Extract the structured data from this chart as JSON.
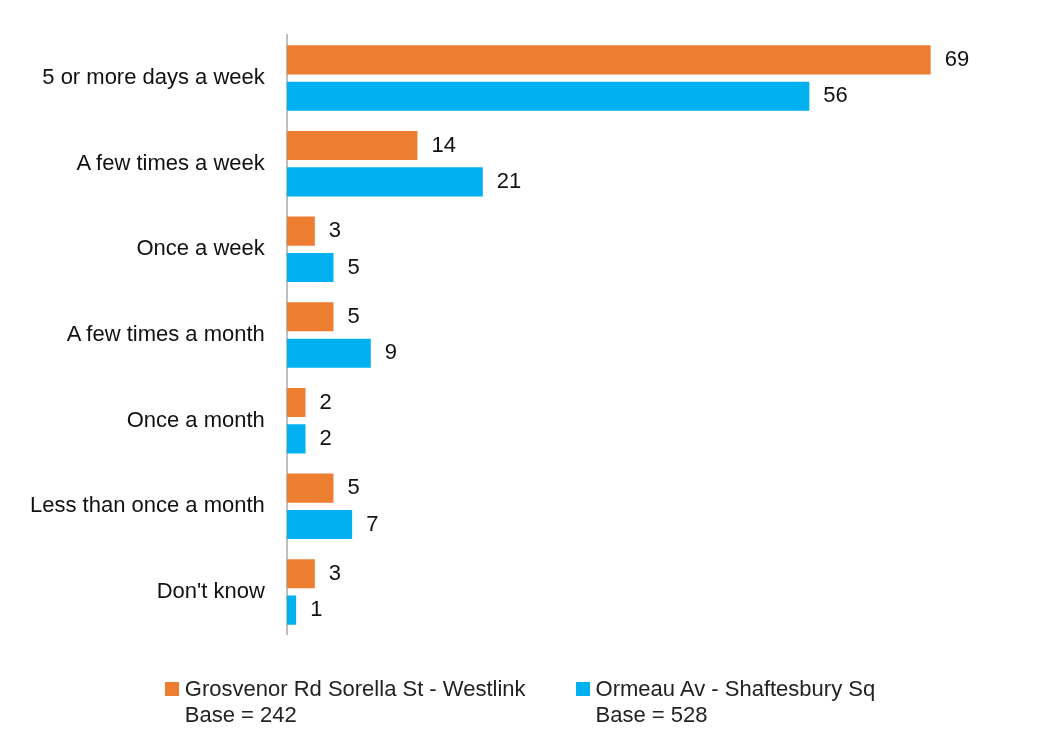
{
  "chart_data": {
    "type": "bar",
    "orientation": "horizontal",
    "categories": [
      "5 or more days a week",
      "A few times a week",
      "Once a week",
      "A few times a month",
      "Once a month",
      "Less than once a month",
      "Don't know"
    ],
    "series": [
      {
        "name": "Grosvenor Rd Sorella St - Westlink\nBase = 242",
        "color": "#ed7d31",
        "values": [
          69,
          14,
          3,
          5,
          2,
          5,
          3
        ]
      },
      {
        "name": "Ormeau Av - Shaftesbury Sq\nBase = 528",
        "color": "#00b0f0",
        "values": [
          56,
          21,
          5,
          9,
          2,
          7,
          1
        ]
      }
    ],
    "data_labels": true,
    "grid": false,
    "legend": "bottom",
    "tick_labels": "y"
  }
}
